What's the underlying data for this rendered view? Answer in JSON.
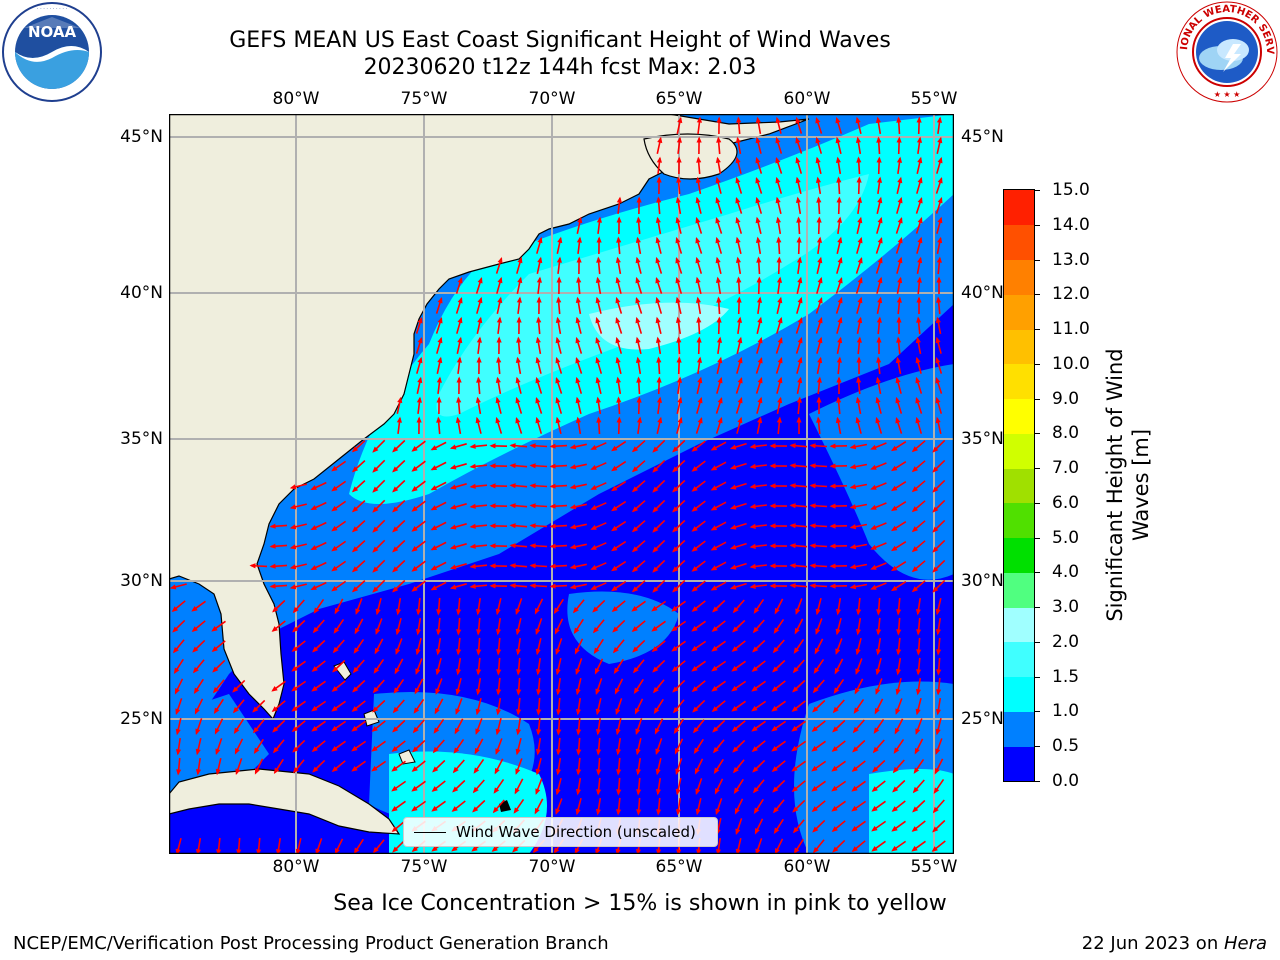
{
  "title": {
    "line1": "GEFS MEAN US East Coast Significant Height of Wind Waves",
    "line2": "20230620 t12z 144h fcst   Max: 2.03"
  },
  "logos": {
    "left": {
      "text": "NOAA",
      "ring_text": "NATIONAL OCEANIC AND ATMOSPHERIC ADMINISTRATION · U.S. DEPARTMENT OF COMMERCE"
    },
    "right": {
      "ring_text": "NATIONAL WEATHER SERVICE"
    }
  },
  "map": {
    "lon_labels": [
      "80°W",
      "75°W",
      "70°W",
      "65°W",
      "60°W",
      "55°W"
    ],
    "lat_labels": [
      "45°N",
      "40°N",
      "35°N",
      "30°N",
      "25°N"
    ],
    "colors": {
      "land": "#efeedd",
      "coast": "#000000",
      "grid": "#b0b0b0",
      "arrow": "#ff0000"
    }
  },
  "colorbar": {
    "title_line1": "Significant Height of Wind",
    "title_line2": "Waves [m]",
    "ticks": [
      "0.0",
      "0.5",
      "1.0",
      "1.5",
      "2.0",
      "3.0",
      "4.0",
      "5.0",
      "6.0",
      "7.0",
      "8.0",
      "9.0",
      "10.0",
      "11.0",
      "12.0",
      "13.0",
      "14.0",
      "15.0"
    ],
    "colors": [
      "#0000ff",
      "#0080ff",
      "#00ffff",
      "#40ffff",
      "#a0ffff",
      "#50ff80",
      "#00e000",
      "#50e000",
      "#a0e000",
      "#d0ff00",
      "#ffff00",
      "#ffe000",
      "#ffc000",
      "#ffa000",
      "#ff8000",
      "#ff5000",
      "#ff2000"
    ]
  },
  "legend": {
    "label": "Wind Wave Direction (unscaled)"
  },
  "caption": "Sea Ice Concentration > 15% is shown in pink to yellow",
  "footer": {
    "left": "NCEP/EMC/Verification Post Processing Product Generation Branch",
    "right_date": "22 Jun 2023 on ",
    "right_machine": "Hera"
  }
}
